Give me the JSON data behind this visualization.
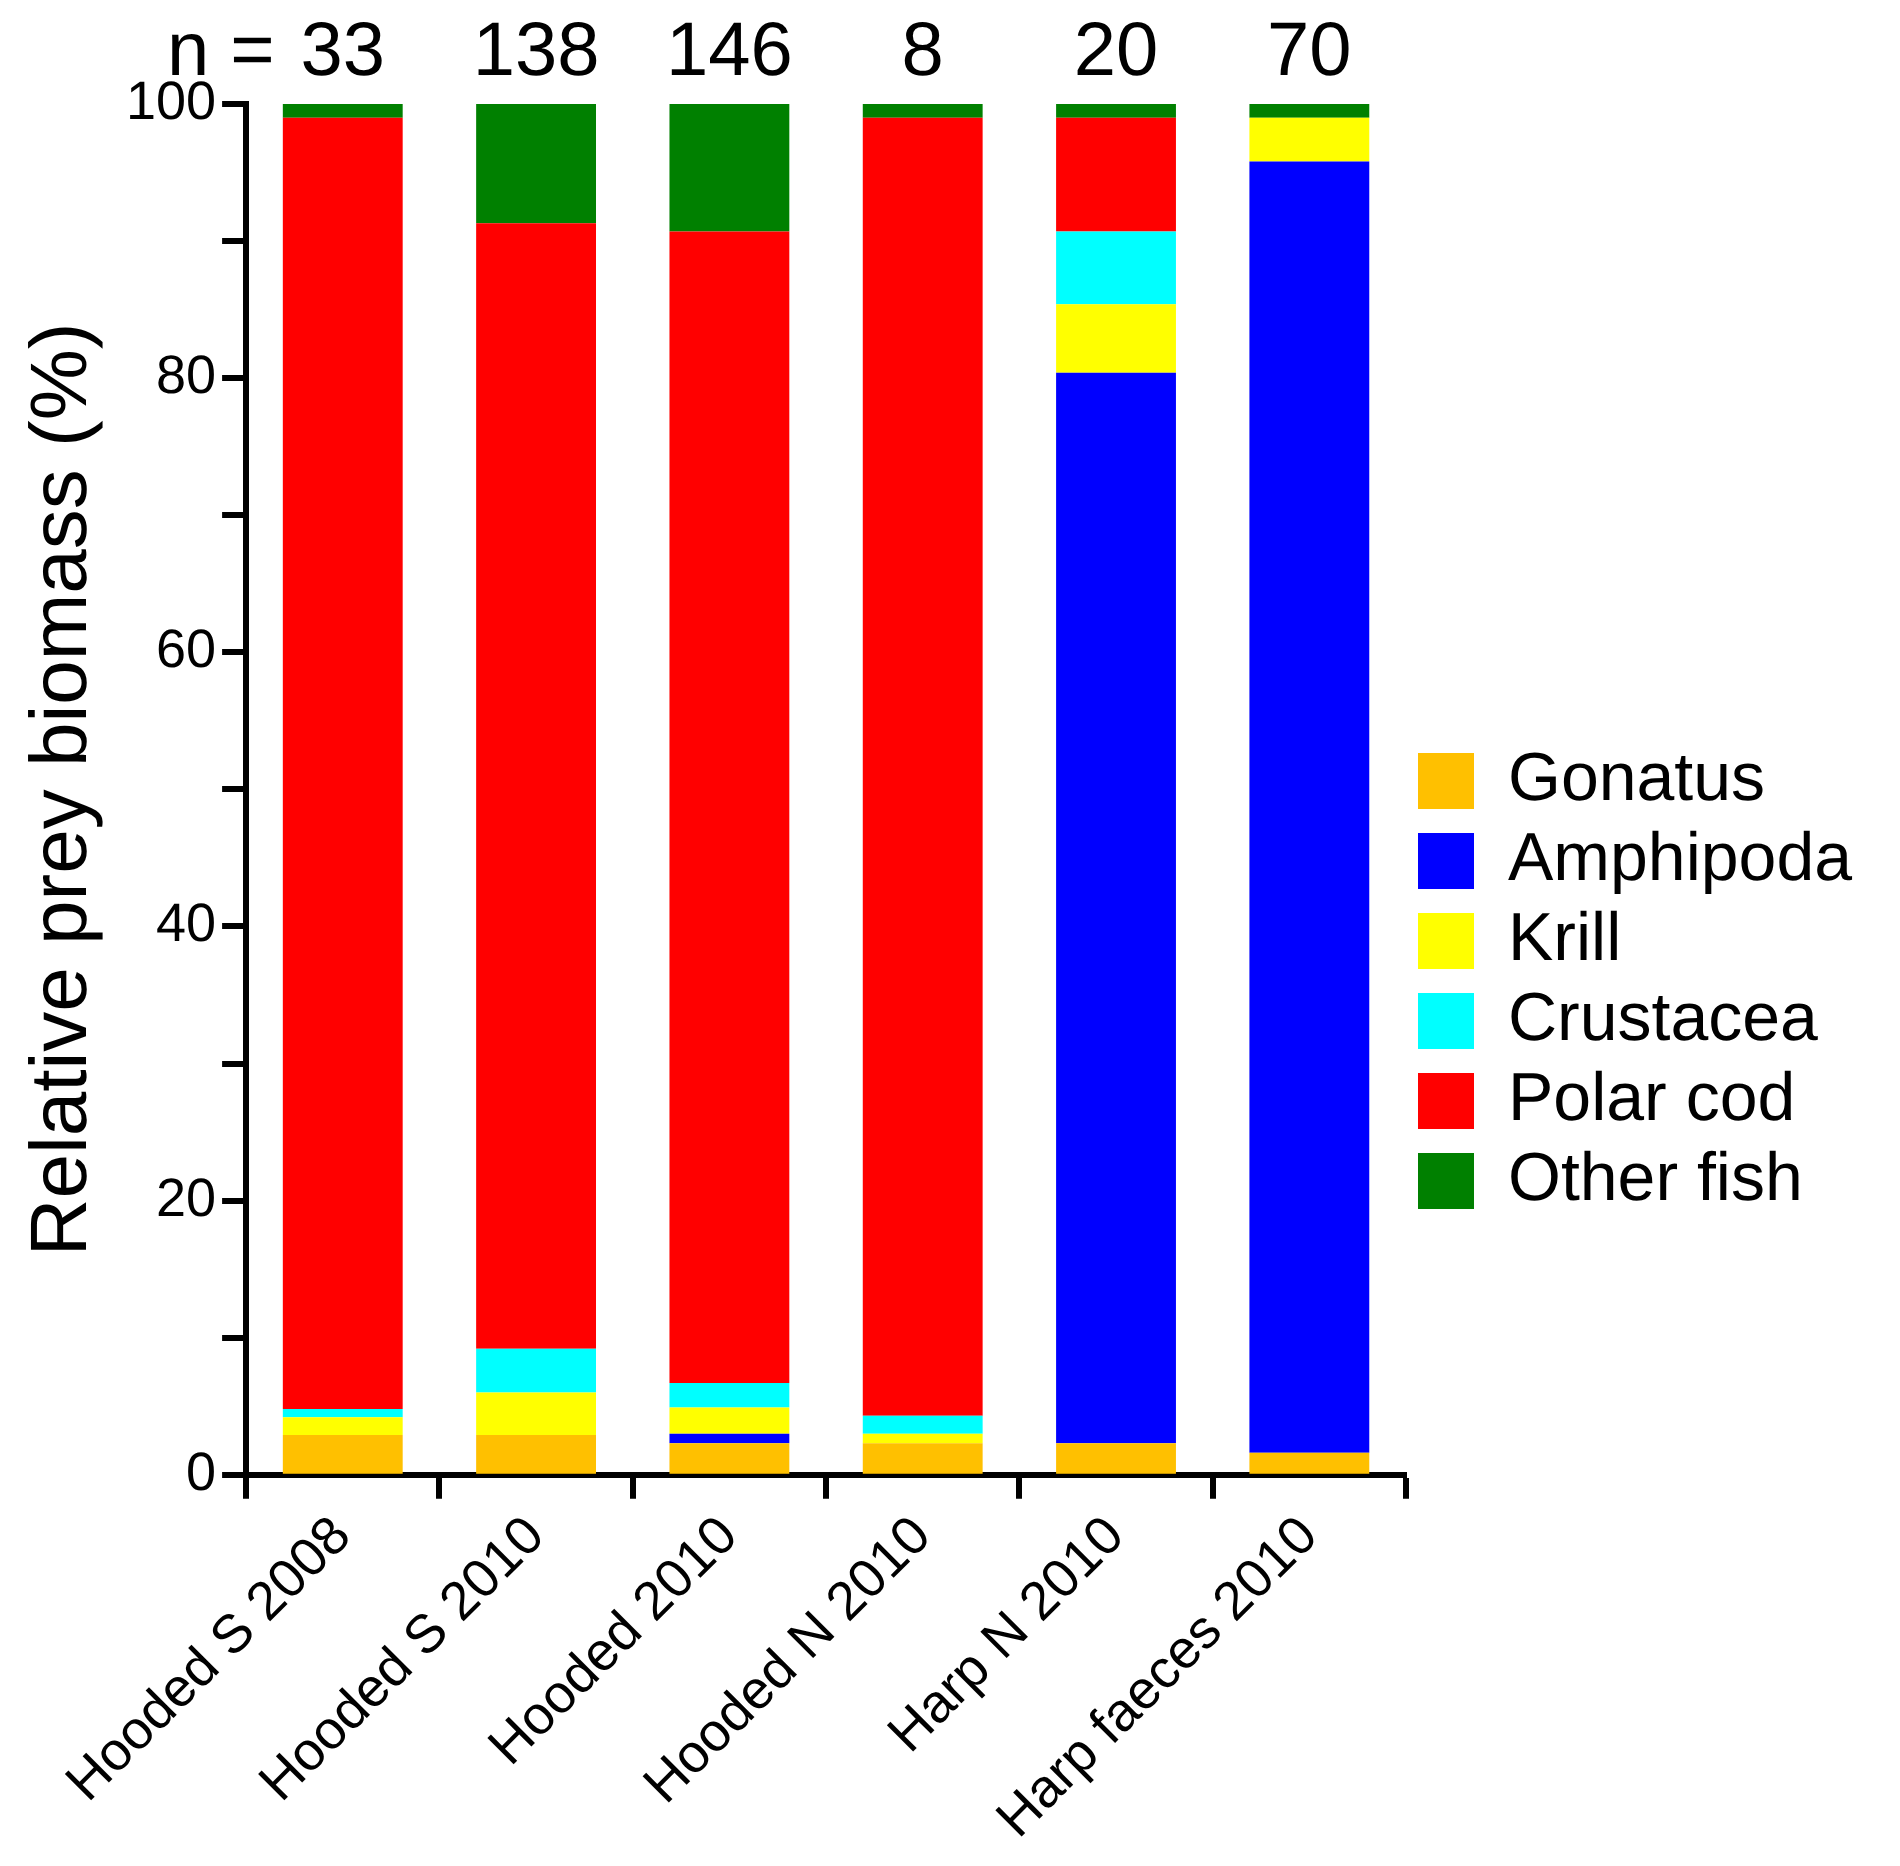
{
  "chart_data": {
    "type": "bar",
    "stacked": true,
    "ylabel": "Relative prey biomass (%)",
    "categories": [
      "Hooded S 2008",
      "Hooded S 2010",
      "Hooded 2010",
      "Hooded N 2010",
      "Harp N 2010",
      "Harp faeces 2010"
    ],
    "series": [
      {
        "name": "Gonatus",
        "color": "#ffc000",
        "values": [
          2.9,
          2.9,
          2.3,
          2.3,
          2.3,
          1.6
        ]
      },
      {
        "name": "Amphipoda",
        "color": "#0000ff",
        "values": [
          0,
          0,
          0.7,
          0,
          78.1,
          94.2
        ]
      },
      {
        "name": "Krill",
        "color": "#ffff00",
        "values": [
          1.3,
          3.1,
          1.9,
          0.7,
          5.0,
          3.2
        ]
      },
      {
        "name": "Crustacea",
        "color": "#00ffff",
        "values": [
          0.6,
          3.2,
          1.8,
          1.3,
          5.3,
          0
        ]
      },
      {
        "name": "Polar cod",
        "color": "#ff0000",
        "values": [
          94.2,
          82.1,
          84.0,
          94.7,
          8.3,
          0
        ]
      },
      {
        "name": "Other fish",
        "color": "#008000",
        "values": [
          1.0,
          8.7,
          9.3,
          1.0,
          1.0,
          1.0
        ]
      }
    ],
    "ylim": [
      0,
      100
    ],
    "yticks": [
      0,
      {
        "value": 10,
        "label": null
      },
      20,
      {
        "value": 30,
        "label": null
      },
      40,
      {
        "value": 50,
        "label": null
      },
      60,
      {
        "value": 70,
        "label": null
      },
      80,
      {
        "value": 90,
        "label": null
      },
      100
    ],
    "grid": false,
    "legend": "right",
    "annotations": [
      "n =",
      {
        "text": "33",
        "x": "Hooded S 2008",
        "y": 100
      },
      {
        "text": "138",
        "x": "Hooded S 2010",
        "y": 100
      },
      {
        "text": "146",
        "x": "Hooded 2010",
        "y": 100
      },
      {
        "text": "8",
        "x": "Hooded N 2010",
        "y": 100
      },
      {
        "text": "20",
        "x": "Harp N 2010",
        "y": 100
      },
      {
        "text": "70",
        "x": "Harp faeces 2010",
        "y": 100
      }
    ]
  }
}
